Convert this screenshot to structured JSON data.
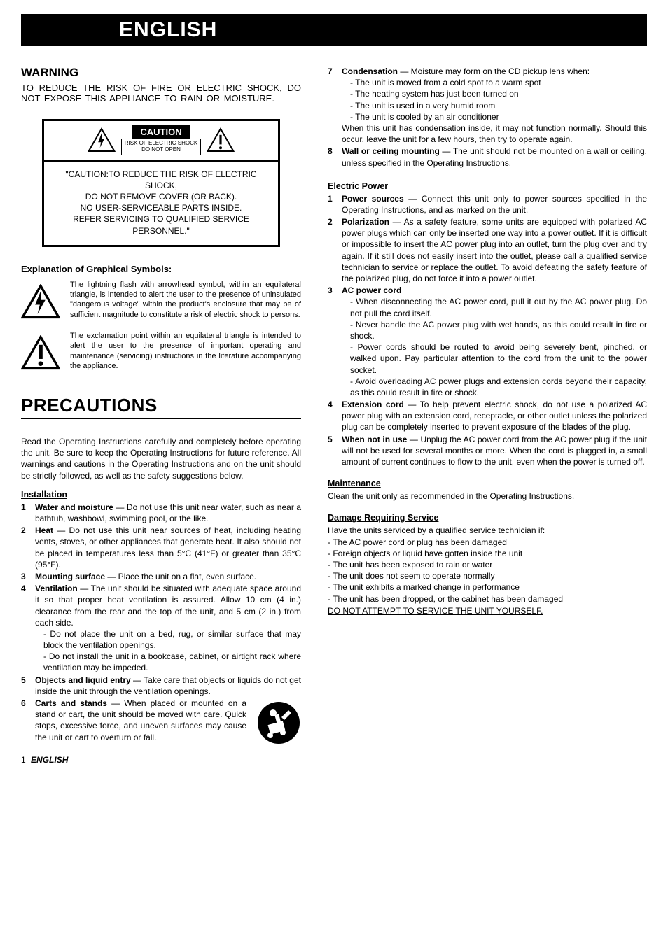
{
  "banner": "ENGLISH",
  "warning": {
    "title": "WARNING",
    "text": "TO REDUCE THE RISK OF FIRE OR ELECTRIC SHOCK, DO NOT EXPOSE THIS APPLIANCE TO RAIN OR MOISTURE."
  },
  "caution_box": {
    "badge": "CAUTION",
    "sub1": "RISK OF ELECTRIC SHOCK",
    "sub2": "DO NOT OPEN",
    "body": "\"CAUTION:TO REDUCE THE RISK OF ELECTRIC SHOCK,\nDO NOT REMOVE COVER (OR BACK).\nNO USER-SERVICEABLE PARTS INSIDE.\nREFER SERVICING TO QUALIFIED SERVICE PERSONNEL.\""
  },
  "symbols": {
    "heading": "Explanation of Graphical Symbols:",
    "lightning": "The lightning flash with arrowhead symbol, within an equilateral triangle, is intended to alert the user to the presence of uninsulated \"dangerous voltage\" within the product's enclosure that may be of sufficient magnitude to constitute a risk of electric shock to persons.",
    "exclaim": "The exclamation point within an equilateral triangle is intended to alert the user to the presence of important operating and maintenance (servicing) instructions in the literature accompanying the appliance."
  },
  "precautions": {
    "title": "PRECAUTIONS",
    "intro": "Read the Operating Instructions carefully and completely before operating the unit. Be sure to keep the Operating Instructions for future reference. All warnings and cautions in the Operating Instructions and on the unit should be strictly followed, as well as the safety suggestions below."
  },
  "installation": {
    "heading": "Installation",
    "items": [
      {
        "n": "1",
        "lead": "Water and moisture",
        "text": " — Do not use this unit near water, such as near a bathtub, washbowl, swimming pool, or the like."
      },
      {
        "n": "2",
        "lead": "Heat",
        "text": " — Do not use this unit near sources of heat, including heating vents, stoves, or other appliances that generate heat. It also should not be placed in temperatures less than 5°C (41°F) or greater than 35°C (95°F)."
      },
      {
        "n": "3",
        "lead": "Mounting surface",
        "text": " — Place the unit on a flat, even surface."
      },
      {
        "n": "4",
        "lead": "Ventilation",
        "text": " — The unit should be situated with adequate space around it so that proper heat ventilation is assured. Allow 10 cm (4 in.) clearance from the rear and the top of the unit, and 5 cm (2 in.) from each side.",
        "sub": [
          "Do not place the unit on a bed, rug, or similar surface that may block the ventilation openings.",
          "Do not install the unit in a bookcase, cabinet, or airtight rack where ventilation may be impeded."
        ]
      },
      {
        "n": "5",
        "lead": "Objects and liquid entry",
        "text": " — Take care that objects or liquids do not get inside the unit through the ventilation openings."
      },
      {
        "n": "6",
        "lead": "Carts and stands",
        "text": " — When placed or mounted on a stand or cart, the unit should be moved with care. Quick stops, excessive force, and uneven surfaces may cause the unit or cart to overturn or fall."
      }
    ]
  },
  "right_top": {
    "items": [
      {
        "n": "7",
        "lead": "Condensation",
        "text": " — Moisture may form on the CD pickup lens when:",
        "sub": [
          "The unit is moved from a cold spot to a warm spot",
          "The heating system has just been turned on",
          "The unit is used in a very humid room",
          "The unit is cooled by an air conditioner"
        ],
        "after": "When this unit has condensation inside, it may not function normally. Should this occur, leave the unit for a few hours, then try to operate again."
      },
      {
        "n": "8",
        "lead": "Wall or ceiling mounting",
        "text": " — The unit should not be mounted on a wall or ceiling, unless specified in the Operating Instructions."
      }
    ]
  },
  "electric": {
    "heading": "Electric Power",
    "items": [
      {
        "n": "1",
        "lead": "Power sources",
        "text": " — Connect this unit only to power sources specified in the Operating Instructions, and as marked on the unit."
      },
      {
        "n": "2",
        "lead": "Polarization",
        "text": " — As a safety feature, some units are equipped with polarized AC power plugs which can only be inserted one way into a power outlet. If it is difficult or impossible to insert the AC power plug into an outlet, turn the plug over and try again. If it still does not easily insert into the outlet, please call a qualified service technician to service or replace the outlet. To avoid defeating the safety feature of the polarized plug, do not force it into a power outlet."
      },
      {
        "n": "3",
        "lead": "AC power cord",
        "text": "",
        "sub": [
          "When disconnecting the AC power cord, pull it out by the AC power plug. Do not pull the cord itself.",
          "Never handle the AC power plug with wet hands, as this could result in fire or shock.",
          "Power cords should be routed to avoid being severely bent, pinched, or walked upon. Pay particular attention to the cord from the unit to the power socket.",
          "Avoid overloading AC power plugs and extension cords beyond their capacity, as this could result in fire or shock."
        ]
      },
      {
        "n": "4",
        "lead": "Extension cord",
        "text": " — To help prevent electric shock, do not use a polarized AC power plug with an extension cord, receptacle, or other outlet unless the polarized plug can be completely inserted to prevent exposure of the blades of the plug."
      },
      {
        "n": "5",
        "lead": "When not in use",
        "text": " — Unplug the AC power cord from the AC power plug if the unit will not be used for several months or more. When the cord is plugged in, a small amount of current continues to flow to the unit, even when the power is turned off."
      }
    ]
  },
  "maintenance": {
    "heading": "Maintenance",
    "text": "Clean the unit only as recommended in the Operating Instructions."
  },
  "damage": {
    "heading": "Damage Requiring Service",
    "intro": "Have the units serviced by a qualified service technician if:",
    "items": [
      "The AC power cord or plug has been damaged",
      "Foreign objects or liquid have gotten inside the unit",
      "The unit has been exposed to rain or water",
      "The unit does not seem to operate normally",
      "The unit exhibits a marked change in performance",
      "The unit has been dropped, or the cabinet has been damaged"
    ],
    "noservice": "DO NOT ATTEMPT TO SERVICE THE UNIT YOURSELF."
  },
  "footer": {
    "page": "1",
    "lang": "ENGLISH"
  },
  "colors": {
    "bg": "#ffffff",
    "fg": "#000000"
  }
}
